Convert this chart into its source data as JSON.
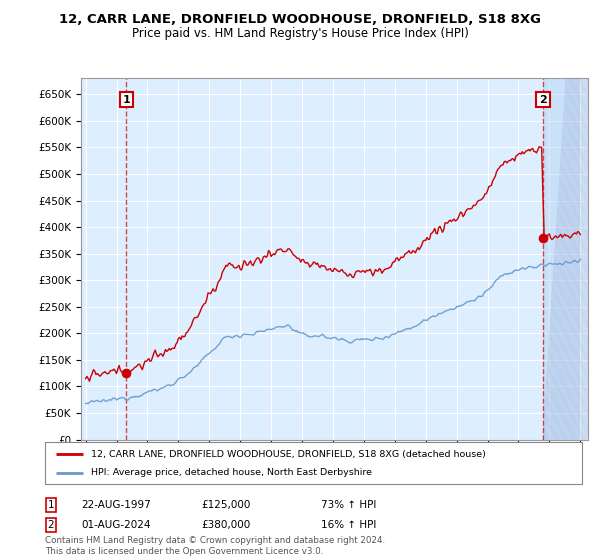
{
  "title": "12, CARR LANE, DRONFIELD WOODHOUSE, DRONFIELD, S18 8XG",
  "subtitle": "Price paid vs. HM Land Registry's House Price Index (HPI)",
  "ylim": [
    0,
    680000
  ],
  "yticks": [
    0,
    50000,
    100000,
    150000,
    200000,
    250000,
    300000,
    350000,
    400000,
    450000,
    500000,
    550000,
    600000,
    650000
  ],
  "sale1_date": "22-AUG-1997",
  "sale1_price": 125000,
  "sale1_hpi_change": "73%",
  "sale2_date": "01-AUG-2024",
  "sale2_price": 380000,
  "sale2_hpi_change": "16%",
  "legend_line1": "12, CARR LANE, DRONFIELD WOODHOUSE, DRONFIELD, S18 8XG (detached house)",
  "legend_line2": "HPI: Average price, detached house, North East Derbyshire",
  "footer": "Contains HM Land Registry data © Crown copyright and database right 2024.\nThis data is licensed under the Open Government Licence v3.0.",
  "red_color": "#cc0000",
  "blue_color": "#6699cc",
  "background_color": "#ddeeff",
  "grid_color": "#ffffff",
  "sale1_year": 1997.64,
  "sale2_year": 2024.58
}
